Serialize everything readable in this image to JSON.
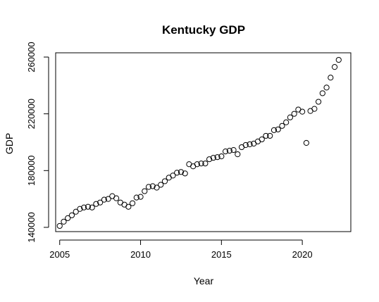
{
  "chart_data": {
    "type": "scatter",
    "title": "Kentucky GDP",
    "xlabel": "Year",
    "ylabel": "GDP",
    "xlim": [
      2004.75,
      2023.0
    ],
    "ylim": [
      137000,
      263000
    ],
    "x_ticks": [
      2005,
      2010,
      2015,
      2020
    ],
    "x_tick_labels": [
      "2005",
      "2010",
      "2015",
      "2020"
    ],
    "y_ticks": [
      140000,
      180000,
      220000,
      260000
    ],
    "y_tick_labels": [
      "140000",
      "180000",
      "220000",
      "260000"
    ],
    "grid": false,
    "legend": "none",
    "marker": "open-circle",
    "colors": {
      "point_stroke": "#000000",
      "axis": "#000000",
      "background": "#ffffff"
    },
    "x": [
      2005.0,
      2005.25,
      2005.5,
      2005.75,
      2006.0,
      2006.25,
      2006.5,
      2006.75,
      2007.0,
      2007.25,
      2007.5,
      2007.75,
      2008.0,
      2008.25,
      2008.5,
      2008.75,
      2009.0,
      2009.25,
      2009.5,
      2009.75,
      2010.0,
      2010.25,
      2010.5,
      2010.75,
      2011.0,
      2011.25,
      2011.5,
      2011.75,
      2012.0,
      2012.25,
      2012.5,
      2012.75,
      2013.0,
      2013.25,
      2013.5,
      2013.75,
      2014.0,
      2014.25,
      2014.5,
      2014.75,
      2015.0,
      2015.25,
      2015.5,
      2015.75,
      2016.0,
      2016.25,
      2016.5,
      2016.75,
      2017.0,
      2017.25,
      2017.5,
      2017.75,
      2018.0,
      2018.25,
      2018.5,
      2018.75,
      2019.0,
      2019.25,
      2019.5,
      2019.75,
      2020.0,
      2020.25,
      2020.5,
      2020.75,
      2021.0,
      2021.25,
      2021.5,
      2021.75,
      2022.0,
      2022.25
    ],
    "y": [
      141000,
      144000,
      146500,
      148500,
      151000,
      153000,
      154000,
      154500,
      154000,
      156500,
      157500,
      159500,
      160000,
      162000,
      160500,
      157500,
      156000,
      154500,
      157000,
      161000,
      161500,
      165500,
      168500,
      169000,
      168000,
      170000,
      172500,
      175000,
      176500,
      178500,
      179000,
      178000,
      184500,
      183000,
      184500,
      185000,
      185000,
      188000,
      189000,
      189500,
      190000,
      193500,
      194000,
      194500,
      191500,
      196500,
      198000,
      198500,
      199000,
      200500,
      202000,
      204500,
      204500,
      208500,
      209000,
      211500,
      214000,
      217500,
      220000,
      223000,
      221500,
      199500,
      222000,
      223500,
      228500,
      234500,
      238500,
      245500,
      253000,
      258000
    ]
  }
}
